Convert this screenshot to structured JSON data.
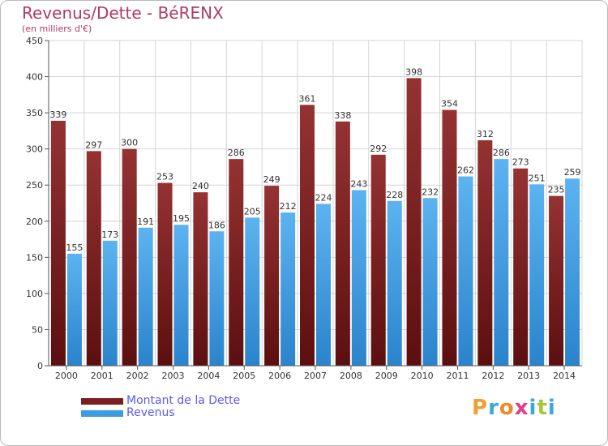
{
  "header": {
    "title": "Revenus/Dette - BéRENX",
    "subtitle": "(en milliers d'€)"
  },
  "chart_data": {
    "type": "bar",
    "title": "Revenus/Dette - BéRENX",
    "subtitle": "(en milliers d'€)",
    "categories": [
      "2000",
      "2001",
      "2002",
      "2003",
      "2004",
      "2005",
      "2006",
      "2007",
      "2008",
      "2009",
      "2010",
      "2011",
      "2012",
      "2013",
      "2014"
    ],
    "series": [
      {
        "name": "Montant de la Dette",
        "color": "#8a2a2a",
        "values": [
          339,
          297,
          300,
          253,
          240,
          286,
          249,
          361,
          338,
          292,
          398,
          354,
          312,
          273,
          235
        ]
      },
      {
        "name": "Revenus",
        "color": "#3d9be0",
        "values": [
          155,
          173,
          191,
          195,
          186,
          205,
          212,
          224,
          243,
          228,
          232,
          262,
          286,
          251,
          259
        ]
      }
    ],
    "ylim": [
      0,
      450
    ],
    "yticks": [
      0,
      50,
      100,
      150,
      200,
      250,
      300,
      350,
      400,
      450
    ],
    "grid": true,
    "legend_position": "bottom-left"
  },
  "legend": {
    "items": [
      {
        "label": "Montant de la Dette",
        "color": "#7a1f1f"
      },
      {
        "label": "Revenus",
        "color": "#3d9be0"
      }
    ]
  },
  "logo": {
    "letters": [
      "P",
      "r",
      "o",
      "x",
      "i",
      "t",
      "i"
    ],
    "colors": [
      "#f0a030",
      "#3aa8e0",
      "#f08a24",
      "#e83a8a",
      "#3aa8e0",
      "#a8c838",
      "#3aa8e0"
    ]
  }
}
